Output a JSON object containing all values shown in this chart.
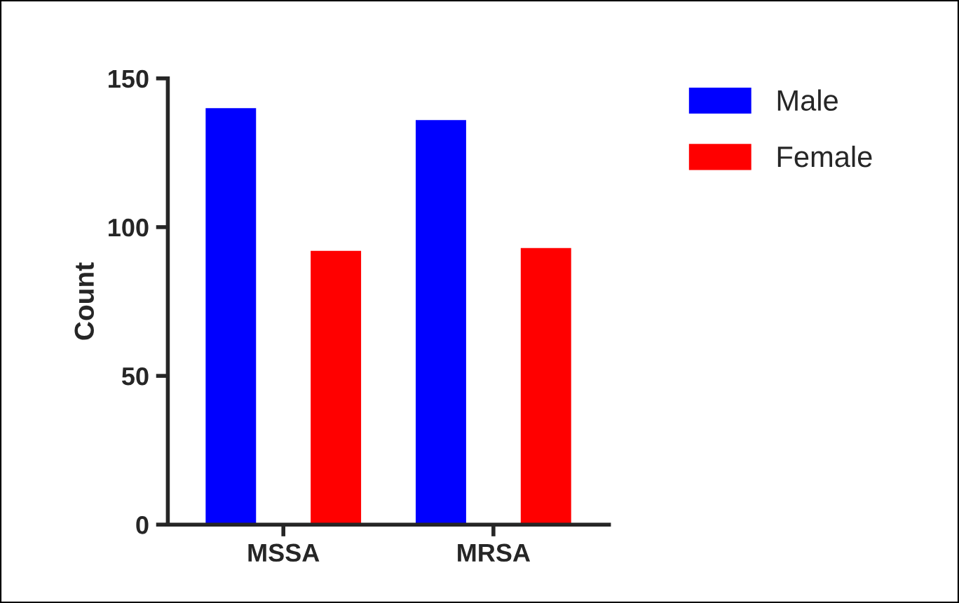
{
  "chart_data": {
    "type": "bar",
    "ylabel": "Count",
    "categories": [
      "MSSA",
      "MRSA"
    ],
    "series": [
      {
        "name": "Male",
        "color": "#0000ff",
        "values": [
          140,
          136
        ]
      },
      {
        "name": "Female",
        "color": "#ff0000",
        "values": [
          92,
          93
        ]
      }
    ],
    "ylim": [
      0,
      150
    ],
    "yticks": [
      0,
      50,
      100,
      150
    ],
    "grid": false,
    "legend": "top right"
  }
}
